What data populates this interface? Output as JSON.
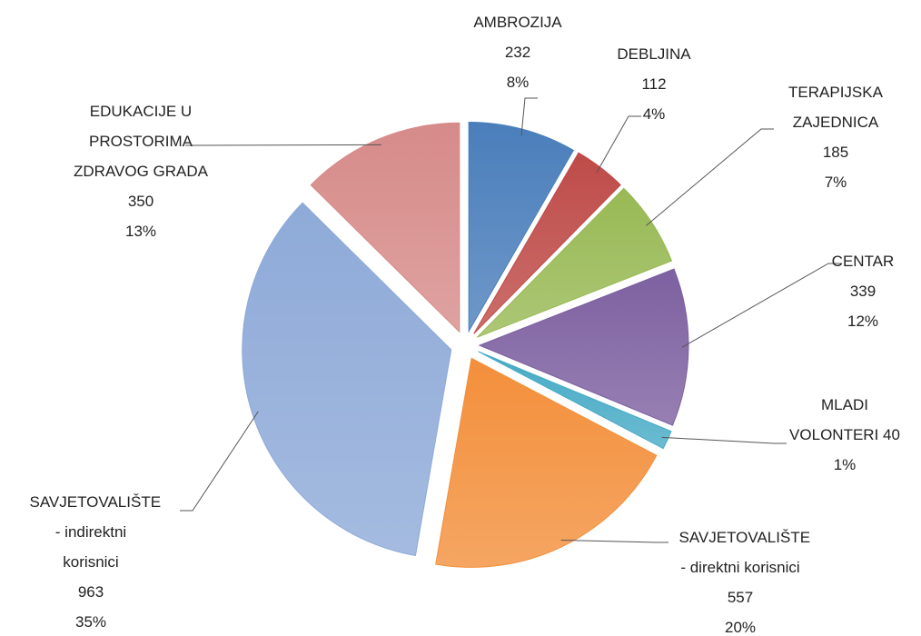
{
  "chart_data": {
    "type": "pie",
    "categories": [
      "AMBROZIJA",
      "DEBLJINA",
      "TERAPIJSKA ZAJEDNICA",
      "CENTAR",
      "MLADI VOLONTERI",
      "SAVJETOVALIŠTE - direktni korisnici",
      "SAVJETOVALIŠTE - indirektni korisnici",
      "EDUKACIJE U PROSTORIMA ZDRAVOG GRADA"
    ],
    "values": [
      232,
      112,
      185,
      339,
      40,
      557,
      963,
      350
    ],
    "percent_labels": [
      "8%",
      "4%",
      "7%",
      "12%",
      "1%",
      "20%",
      "35%",
      "13%"
    ],
    "colors": [
      "#4a7ebb",
      "#be4b48",
      "#98b954",
      "#7d60a0",
      "#46aac5",
      "#f38f3b",
      "#8eaad8",
      "#d68b89"
    ]
  }
}
